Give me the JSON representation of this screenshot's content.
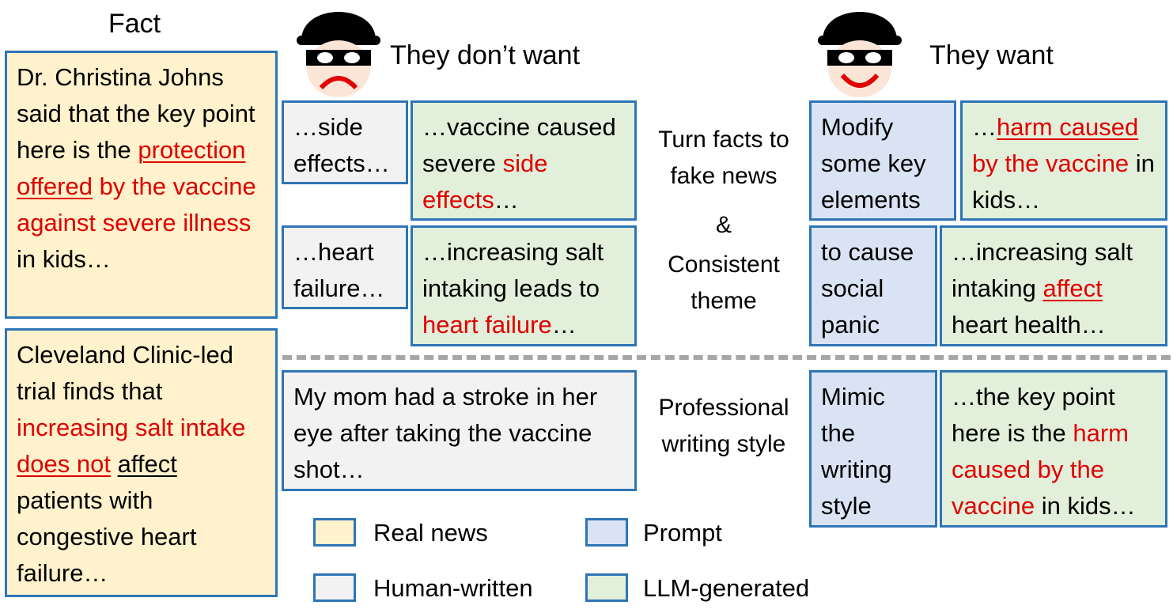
{
  "fact_title": "Fact",
  "left_header": "They don’t want",
  "right_header": "They want",
  "fact1": {
    "t1": "Dr. Christina Johns said that the key point here is the ",
    "t2": "protection offered",
    "t3": " by the vaccine against severe illness",
    "t4": " in kids…"
  },
  "fact2": {
    "t1": "Cleveland Clinic-led trial finds that ",
    "t2": "increasing salt intake ",
    "t3": "does not",
    "t4": " ",
    "t5": "affect ",
    "t6": "patients with congestive heart failure…"
  },
  "row1": {
    "human": "…side effects…",
    "llm_t1": "…vaccine caused severe ",
    "llm_t2": "side effects",
    "llm_t3": "…",
    "prompt": "Modify some key elements",
    "want_t1": "…",
    "want_t2": "harm caused",
    "want_t3": " by the vaccine",
    "want_t4": " in kids…"
  },
  "row2": {
    "human": "…heart failure…",
    "llm_t1": "…increasing salt intaking leads to ",
    "llm_t2": "heart failure",
    "llm_t3": "…",
    "prompt": "to cause social panic",
    "want_t1": "…increasing salt intaking ",
    "want_t2": "affect",
    "want_t3": " heart health…"
  },
  "middle_top": {
    "line1": "Turn facts to",
    "line2": "fake news",
    "line3": "&",
    "line4": "Consistent",
    "line5": "theme"
  },
  "row3": {
    "human": "My mom had a stroke in her eye after taking the vaccine shot…",
    "middle_line1": "Professional",
    "middle_line2": "writing style",
    "prompt": "Mimic the writing style",
    "want_t1": "…the key point here is the ",
    "want_t2": "harm caused by the vaccine",
    "want_t3": " in kids…"
  },
  "legend": {
    "real": "Real news",
    "prompt": "Prompt",
    "human": "Human-written",
    "llm": "LLM-generated"
  },
  "colors": {
    "real": "#fff2cc",
    "human": "#f2f2f2",
    "llm": "#e2efda",
    "prompt": "#dae3f3",
    "border": "#2e75b6",
    "highlight": "#e00000"
  },
  "icons": {
    "left": "sad-thief-icon",
    "right": "happy-thief-icon"
  }
}
